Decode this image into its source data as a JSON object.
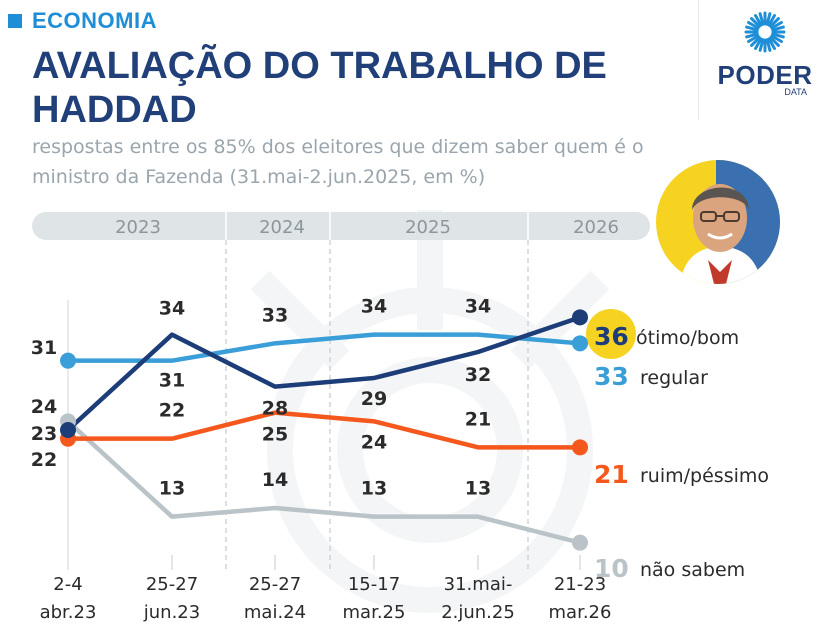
{
  "header": {
    "kicker": "ECONOMIA",
    "title": "AVALIAÇÃO DO TRABALHO DE HADDAD",
    "subtitle": "respostas entre os 85% dos eleitores que dizem saber quem é o ministro da Fazenda (31.mai-2.jun.2025, em %)"
  },
  "logo": {
    "word": "PODER",
    "sub": "DATA"
  },
  "photo": {
    "icon": "haddad-portrait"
  },
  "colors": {
    "navy": "#1c3d78",
    "light_blue": "#3a9ed8",
    "orange": "#f5581c",
    "gray": "#b9c3c8",
    "highlight_yellow": "#f6d321",
    "year_band": "#dfe4e6"
  },
  "chart_data": {
    "type": "line",
    "title": "AVALIAÇÃO DO TRABALHO DE HADDAD",
    "ylim": [
      8,
      38
    ],
    "years": [
      "2023",
      "2024",
      "2025",
      "2026"
    ],
    "categories": [
      [
        "2-4",
        "abr.23"
      ],
      [
        "25-27",
        "jun.23"
      ],
      [
        "25-27",
        "mai.24"
      ],
      [
        "15-17",
        "mar.25"
      ],
      [
        "31.mai-",
        "2.jun.25"
      ],
      [
        "21-23",
        "mar.26"
      ]
    ],
    "series": [
      {
        "name": "ótimo/bom",
        "color": "#1c3d78",
        "values": [
          23,
          34,
          28,
          29,
          32,
          36
        ],
        "labels": [
          "23",
          "34",
          "28",
          "29",
          "32",
          "36"
        ]
      },
      {
        "name": "regular",
        "color": "#3a9ed8",
        "values": [
          31,
          31,
          33,
          34,
          34,
          33
        ],
        "labels": [
          "31",
          "31",
          "33",
          "34",
          "34",
          "33"
        ]
      },
      {
        "name": "ruim/péssimo",
        "color": "#f5581c",
        "values": [
          22,
          22,
          25,
          24,
          21,
          21
        ],
        "labels": [
          "22",
          "22",
          "25",
          "24",
          "21",
          "21"
        ]
      },
      {
        "name": "não sabem",
        "color": "#b9c3c8",
        "values": [
          24,
          13,
          14,
          13,
          13,
          10
        ],
        "labels": [
          "24",
          "13",
          "14",
          "13",
          "13",
          "10"
        ]
      }
    ]
  }
}
